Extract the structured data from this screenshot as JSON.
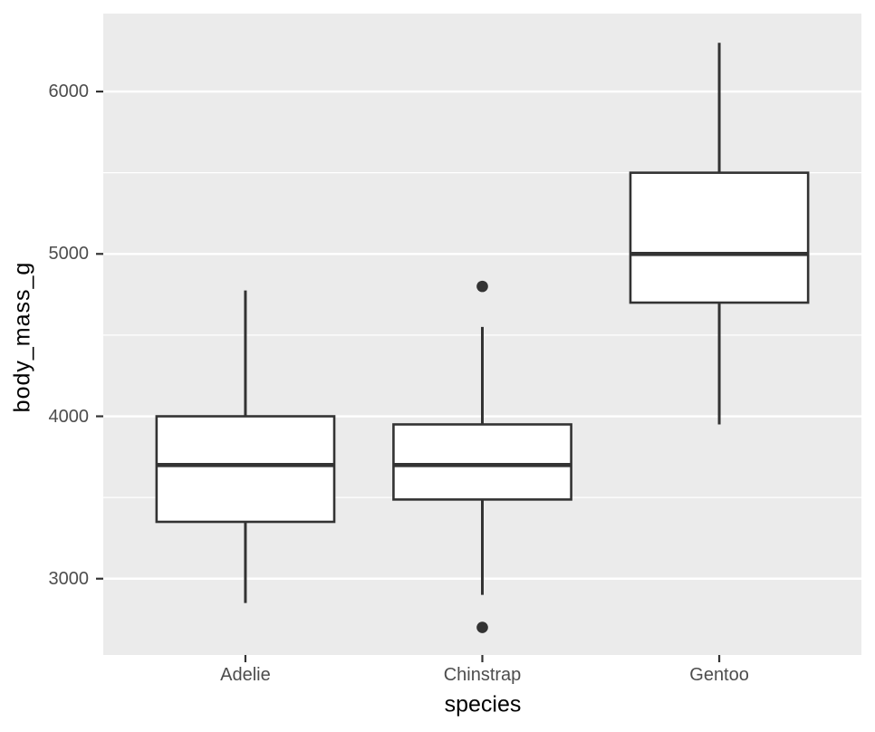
{
  "figure": {
    "background": "#FFFFFF"
  },
  "chart_data": {
    "type": "boxplot",
    "title": "",
    "xlabel": "species",
    "ylabel": "body_mass_g",
    "categories": [
      "Adelie",
      "Chinstrap",
      "Gentoo"
    ],
    "series": [
      {
        "name": "Adelie",
        "whisker_low": 2850,
        "q1": 3350,
        "median": 3700,
        "q3": 4000,
        "whisker_high": 4775,
        "outliers": []
      },
      {
        "name": "Chinstrap",
        "whisker_low": 2900,
        "q1": 3487.5,
        "median": 3700,
        "q3": 3950,
        "whisker_high": 4550,
        "outliers": [
          2700,
          4800
        ]
      },
      {
        "name": "Gentoo",
        "whisker_low": 3950,
        "q1": 4700,
        "median": 5000,
        "q3": 5500,
        "whisker_high": 6300,
        "outliers": []
      }
    ],
    "y_axis": {
      "tick_labels": [
        "3000",
        "4000",
        "5000",
        "6000"
      ],
      "ticks": [
        3000,
        4000,
        5000,
        6000
      ],
      "minor_ticks": [
        3500,
        4500,
        5500
      ],
      "ylim": [
        2530,
        6480
      ]
    },
    "grid": true,
    "legend_position": "none",
    "colors": {
      "panel_bg": "#EBEBEB",
      "grid_major": "#FFFFFF",
      "grid_minor": "#FFFFFF",
      "box_fill": "#FFFFFF",
      "box_stroke": "#333333",
      "median_stroke": "#333333",
      "whisker_stroke": "#333333",
      "outlier_fill": "#333333",
      "axis_text": "#4D4D4D",
      "axis_title": "#000000",
      "tick_mark": "#333333"
    }
  }
}
